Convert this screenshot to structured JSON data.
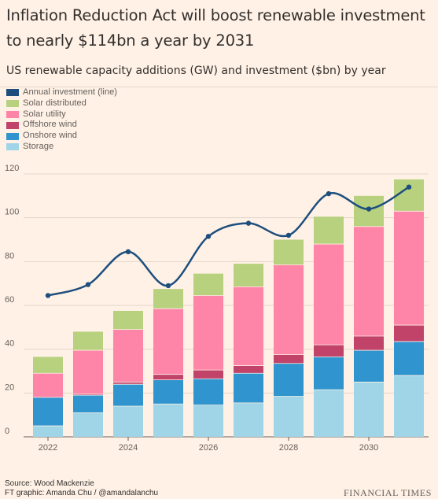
{
  "header": {
    "title": "Inflation Reduction Act will boost renewable investment to nearly $114bn a year by 2031",
    "subtitle": "US renewable capacity additions (GW) and investment ($bn) by year"
  },
  "legend": [
    {
      "label": "Annual investment (line)",
      "color": "#1d4e7e"
    },
    {
      "label": "Solar distributed",
      "color": "#b7d17f"
    },
    {
      "label": "Solar utility",
      "color": "#ff85a8"
    },
    {
      "label": "Offshore wind",
      "color": "#c1436a"
    },
    {
      "label": "Onshore wind",
      "color": "#3094cf"
    },
    {
      "label": "Storage",
      "color": "#9fd5e7"
    }
  ],
  "footer": {
    "source": "Source: Wood Mackenzie",
    "credit": "FT graphic: Amanda Chu / @amandalanchu",
    "brand": "FINANCIAL TIMES"
  },
  "chart_data": {
    "type": "bar",
    "stacked": true,
    "x": [
      2022,
      2023,
      2024,
      2025,
      2026,
      2027,
      2028,
      2029,
      2030,
      2031
    ],
    "x_tick_labels": [
      "2022",
      "2024",
      "2026",
      "2028",
      "2030"
    ],
    "x_tick_values": [
      2022,
      2024,
      2026,
      2028,
      2030
    ],
    "ylim": [
      0,
      120
    ],
    "y_ticks": [
      0,
      20,
      40,
      60,
      80,
      100,
      120
    ],
    "grid": true,
    "series": [
      {
        "name": "Storage",
        "color": "#9fd5e7",
        "values": [
          5,
          11,
          14,
          15,
          14.5,
          15.5,
          18.5,
          21.5,
          25,
          28
        ]
      },
      {
        "name": "Onshore wind",
        "color": "#3094cf",
        "values": [
          13,
          8,
          10,
          11,
          12,
          13.5,
          15,
          15,
          14.5,
          15.5
        ]
      },
      {
        "name": "Offshore wind",
        "color": "#c1436a",
        "values": [
          0,
          0.5,
          1,
          2.5,
          4,
          3.5,
          4,
          5.5,
          6.5,
          7.5
        ]
      },
      {
        "name": "Solar utility",
        "color": "#ff85a8",
        "values": [
          11,
          20,
          24,
          30,
          34,
          36,
          41,
          46,
          50,
          52
        ]
      },
      {
        "name": "Solar distributed",
        "color": "#b7d17f",
        "values": [
          7.5,
          8.5,
          8.5,
          9,
          10,
          10.5,
          11.5,
          12.5,
          14,
          14.5
        ]
      }
    ],
    "line": {
      "name": "Annual investment (line)",
      "color": "#1d4e7e",
      "values": [
        64.5,
        69.5,
        84.5,
        69,
        91.5,
        97.5,
        92,
        111,
        104,
        114
      ]
    }
  }
}
